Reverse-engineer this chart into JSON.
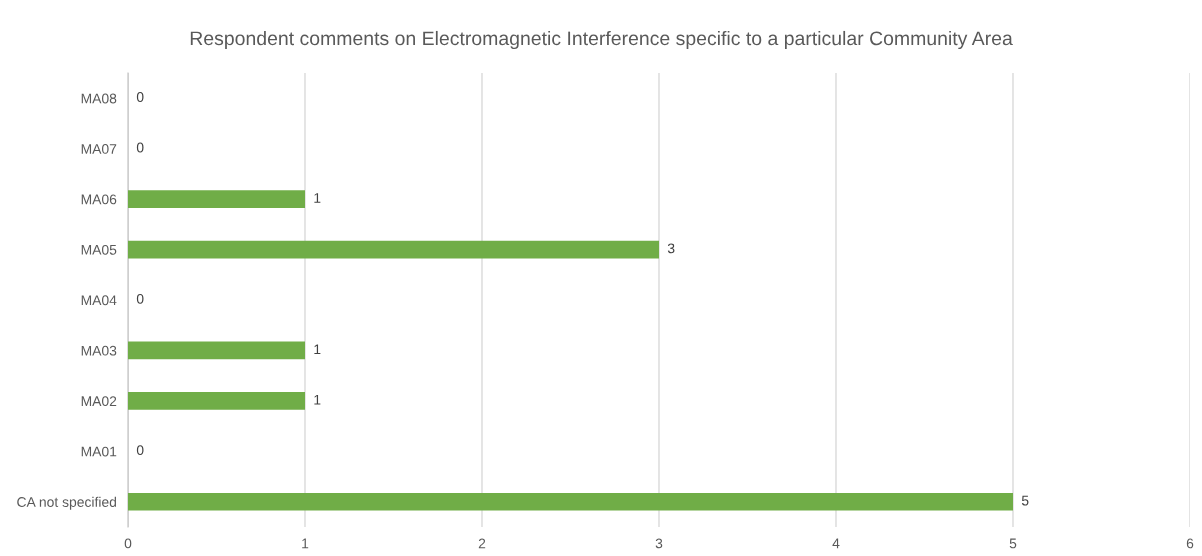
{
  "chart_data": {
    "type": "bar",
    "orientation": "horizontal",
    "title": "Respondent comments on Electromagnetic Interference specific to a particular Community Area",
    "categories": [
      "MA08",
      "MA07",
      "MA06",
      "MA05",
      "MA04",
      "MA03",
      "MA02",
      "MA01",
      "CA not specified"
    ],
    "values": [
      0,
      0,
      1,
      3,
      0,
      1,
      1,
      0,
      5
    ],
    "color": "#70ad47",
    "xlim": [
      0,
      6
    ],
    "xticks": [
      0,
      1,
      2,
      3,
      4,
      5,
      6
    ],
    "grid": "x",
    "data_labels": true
  }
}
